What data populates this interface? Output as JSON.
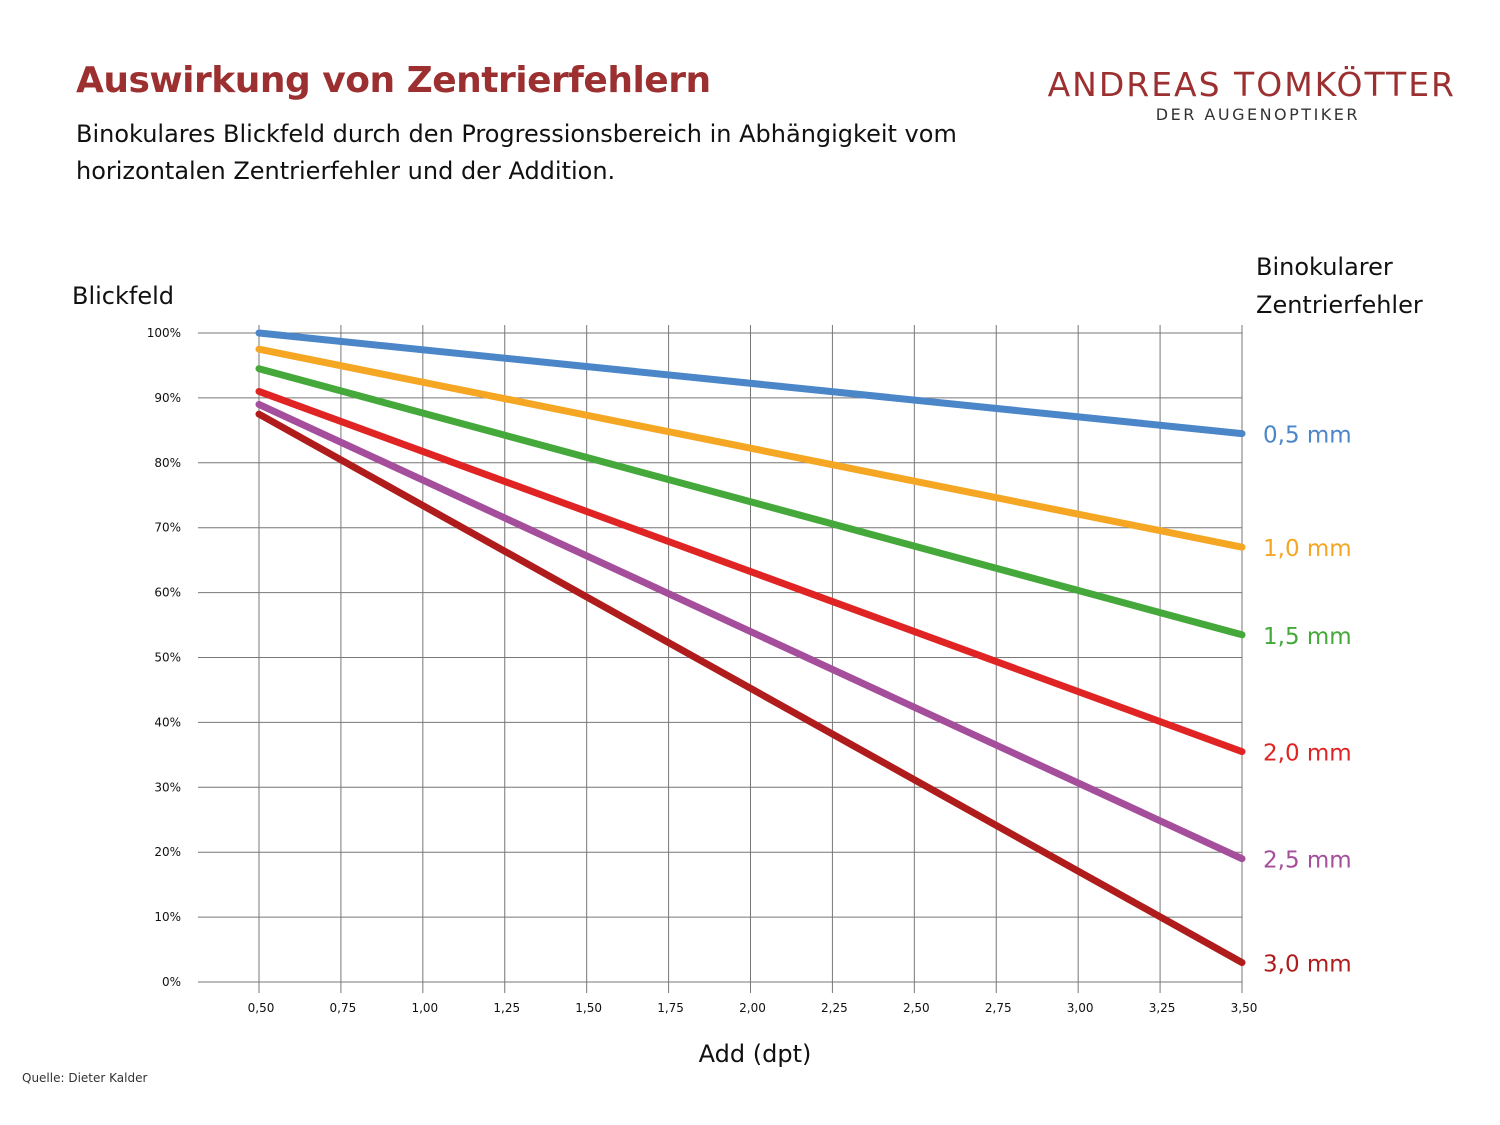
{
  "header": {
    "title": "Auswirkung von Zentrierfehlern",
    "subtitle": "Binokulares Blickfeld durch den Progressionsbereich in Abhängigkeit vom horizontalen Zentrierfehler und der Addition.",
    "brand_name": "ANDREAS TOMKÖTTER",
    "brand_sub": "DER AUGENOPTIKER"
  },
  "footer": {
    "source": "Quelle: Dieter Kalder"
  },
  "chart_data": {
    "type": "line",
    "ylabel": "Blickfeld",
    "xlabel": "Add (dpt)",
    "legend_title": "Binokularer Zentrierfehler",
    "legend_placement": "right",
    "grid": true,
    "xlim": [
      0.25,
      3.5
    ],
    "ylim": [
      0,
      100
    ],
    "x_ticks": [
      "0,50",
      "0,75",
      "1,00",
      "1,25",
      "1,50",
      "1,75",
      "2,00",
      "2,25",
      "2,50",
      "2,75",
      "3,00",
      "3,25",
      "3,50"
    ],
    "y_ticks": [
      "0%",
      "10%",
      "20%",
      "30%",
      "40%",
      "50%",
      "60%",
      "70%",
      "80%",
      "90%",
      "100%"
    ],
    "x": [
      0.5,
      3.5
    ],
    "series": [
      {
        "name": "0,5 mm",
        "color": "#4a86c8",
        "values": [
          100,
          84.5
        ]
      },
      {
        "name": "1,0 mm",
        "color": "#f5a623",
        "values": [
          97.5,
          67
        ]
      },
      {
        "name": "1,5 mm",
        "color": "#44a83a",
        "values": [
          94.5,
          53.5
        ]
      },
      {
        "name": "2,0 mm",
        "color": "#e02424",
        "values": [
          91,
          35.5
        ]
      },
      {
        "name": "2,5 mm",
        "color": "#a44e9c",
        "values": [
          89,
          19
        ]
      },
      {
        "name": "3,0 mm",
        "color": "#b01c1c",
        "values": [
          87.5,
          3
        ]
      }
    ]
  }
}
